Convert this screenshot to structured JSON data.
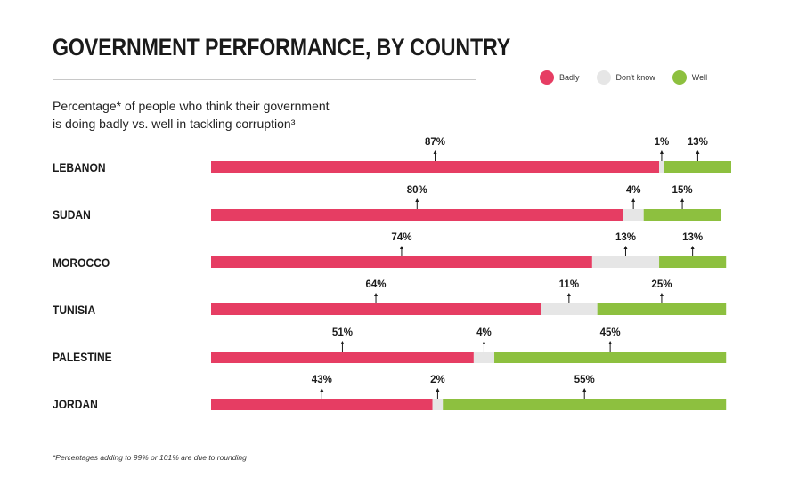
{
  "header": {
    "title": "GOVERNMENT PERFORMANCE, BY COUNTRY",
    "subtitle_line1": "Percentage* of people who think their government",
    "subtitle_line2": "is doing badly vs. well in tackling corruption³"
  },
  "legend": [
    {
      "label": "Badly",
      "color": "#e63d63"
    },
    {
      "label": "Don't know",
      "color": "#e6e6e6"
    },
    {
      "label": "Well",
      "color": "#8dc03f"
    }
  ],
  "footnote": "*Percentages adding to 99% or 101% are due to rounding",
  "chart_data": {
    "type": "bar",
    "orientation": "horizontal",
    "stacked": true,
    "title": "GOVERNMENT PERFORMANCE, BY COUNTRY",
    "categories": [
      "LEBANON",
      "SUDAN",
      "MOROCCO",
      "TUNISIA",
      "PALESTINE",
      "JORDAN"
    ],
    "series": [
      {
        "name": "Badly",
        "color": "#e63d63",
        "values": [
          87,
          80,
          74,
          64,
          51,
          43
        ]
      },
      {
        "name": "Don't know",
        "color": "#e6e6e6",
        "values": [
          1,
          4,
          13,
          11,
          4,
          2
        ]
      },
      {
        "name": "Well",
        "color": "#8dc03f",
        "values": [
          13,
          15,
          13,
          25,
          45,
          55
        ]
      }
    ],
    "labels": [
      [
        "87%",
        "1%",
        "13%"
      ],
      [
        "80%",
        "4%",
        "15%"
      ],
      [
        "74%",
        "13%",
        "13%"
      ],
      [
        "64%",
        "11%",
        "25%"
      ],
      [
        "51%",
        "4%",
        "45%"
      ],
      [
        "43%",
        "2%",
        "55%"
      ]
    ],
    "xlim": [
      0,
      101
    ]
  }
}
